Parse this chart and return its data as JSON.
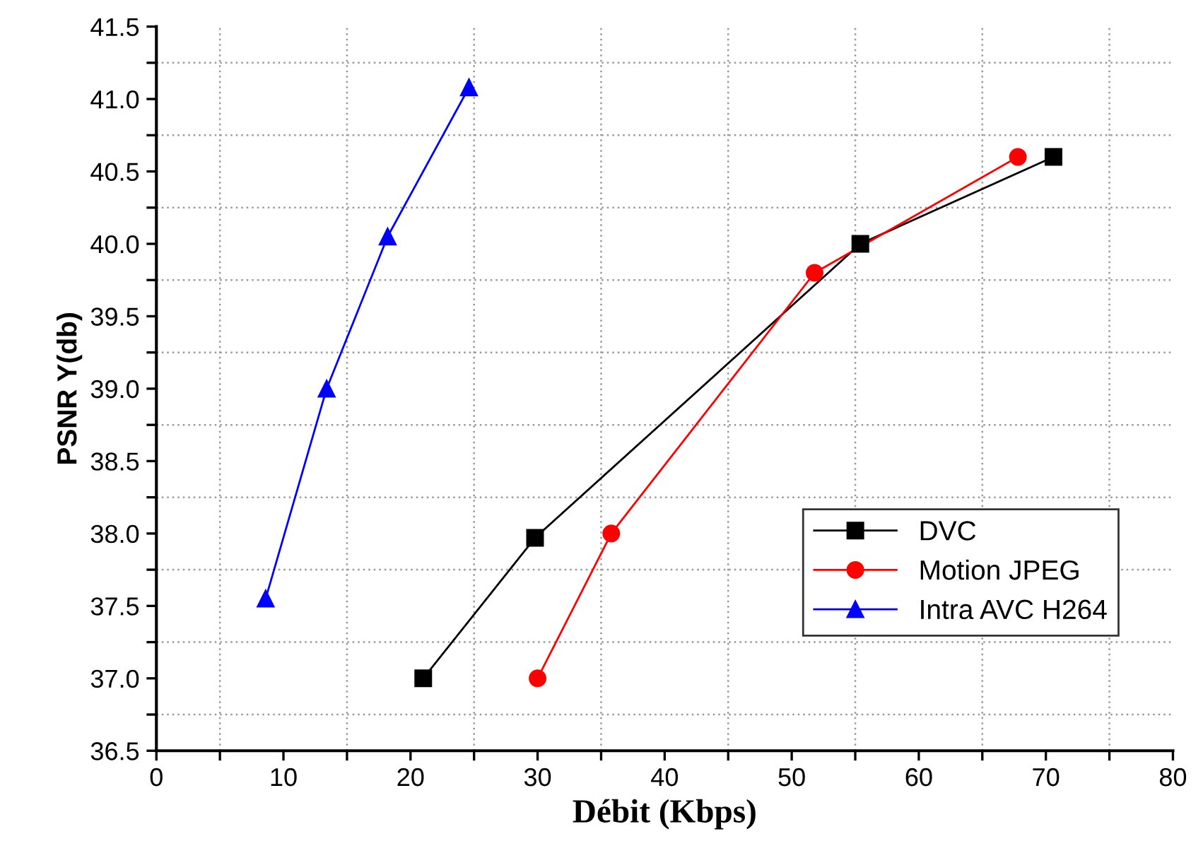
{
  "chart_data": {
    "type": "line",
    "xlabel": "Débit (Kbps)",
    "ylabel": "PSNR Y(db)",
    "xlim": [
      0,
      80
    ],
    "ylim": [
      36.5,
      41.5
    ],
    "xticks": [
      0,
      {
        "value": 5,
        "label": null
      },
      10,
      {
        "value": 15,
        "label": null
      },
      20,
      {
        "value": 25,
        "label": null
      },
      30,
      {
        "value": 35,
        "label": null
      },
      40,
      {
        "value": 45,
        "label": null
      },
      50,
      {
        "value": 55,
        "label": null
      },
      60,
      {
        "value": 65,
        "label": null
      },
      70,
      {
        "value": 75,
        "label": null
      },
      80
    ],
    "yticks": [
      {
        "value": 36.5,
        "label": "36.5"
      },
      {
        "value": 36.75,
        "label": null
      },
      {
        "value": 37.0,
        "label": "37.0"
      },
      {
        "value": 37.25,
        "label": null
      },
      {
        "value": 37.5,
        "label": "37.5"
      },
      {
        "value": 37.75,
        "label": null
      },
      {
        "value": 38.0,
        "label": "38.0"
      },
      {
        "value": 38.25,
        "label": null
      },
      {
        "value": 38.5,
        "label": "38.5"
      },
      {
        "value": 38.75,
        "label": null
      },
      {
        "value": 39.0,
        "label": "39.0"
      },
      {
        "value": 39.25,
        "label": null
      },
      {
        "value": 39.5,
        "label": "39.5"
      },
      {
        "value": 39.75,
        "label": null
      },
      {
        "value": 40.0,
        "label": "40.0"
      },
      {
        "value": 40.25,
        "label": null
      },
      {
        "value": 40.5,
        "label": "40.5"
      },
      {
        "value": 40.75,
        "label": null
      },
      {
        "value": 41.0,
        "label": "41.0"
      },
      {
        "value": 41.25,
        "label": null
      },
      {
        "value": 41.5,
        "label": "41.5"
      }
    ],
    "grid": true,
    "legend": "bottom right",
    "series": [
      {
        "name": "DVC",
        "color": "#000000",
        "marker": "square",
        "x": [
          21.0,
          29.8,
          55.4,
          70.6
        ],
        "values": [
          37.0,
          37.97,
          40.0,
          40.6
        ]
      },
      {
        "name": "Motion JPEG",
        "color": "#ff0000",
        "marker": "circle",
        "x": [
          30.0,
          35.8,
          51.8,
          67.8
        ],
        "values": [
          37.0,
          38.0,
          39.8,
          40.6
        ]
      },
      {
        "name": "Intra AVC H264",
        "color": "#0000ff",
        "marker": "triangle",
        "x": [
          8.6,
          13.4,
          18.2,
          24.6
        ],
        "values": [
          37.55,
          39.0,
          40.05,
          41.08
        ]
      }
    ]
  }
}
